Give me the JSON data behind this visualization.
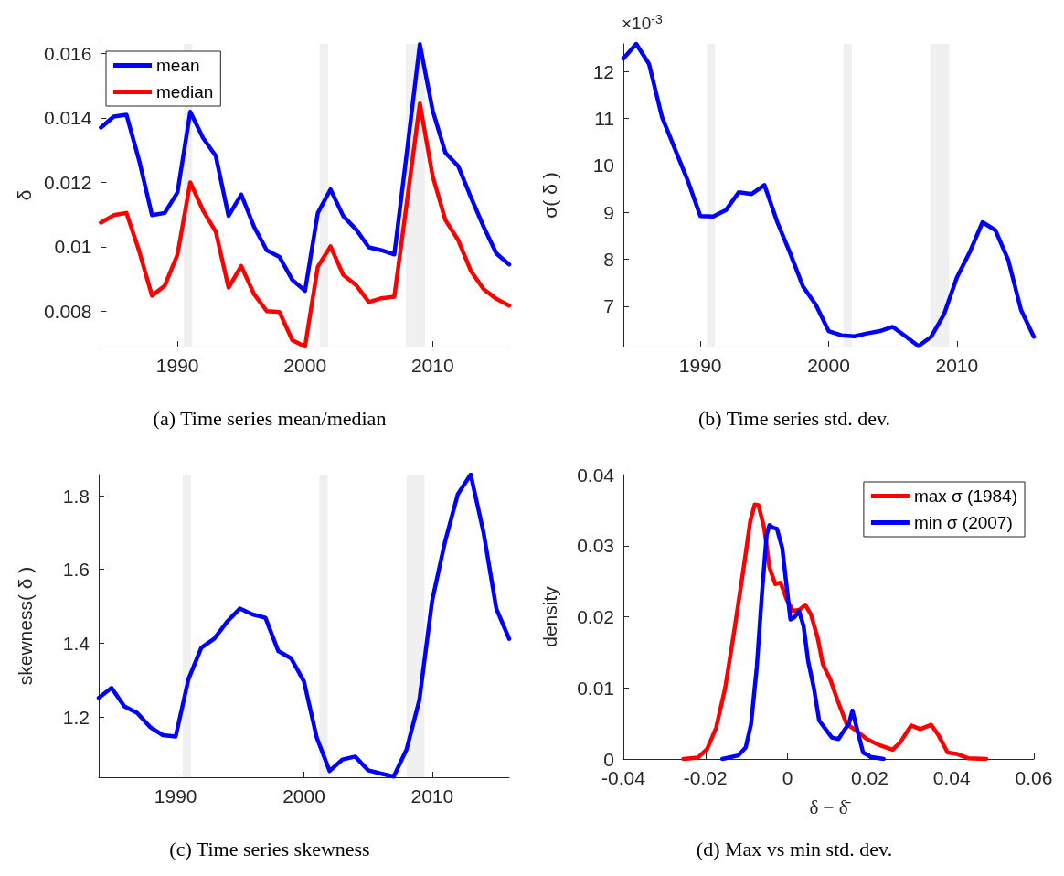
{
  "chart_data": [
    {
      "type": "line",
      "title": "(a) Time series mean/median",
      "ylabel": "δ",
      "marker": "none",
      "grid": false,
      "legend": "top left",
      "x": [
        1984,
        1985,
        1986,
        1987,
        1988,
        1989,
        1990,
        1991,
        1992,
        1993,
        1994,
        1995,
        1996,
        1997,
        1998,
        1999,
        2000,
        2001,
        2002,
        2003,
        2004,
        2005,
        2006,
        2007,
        2008,
        2009,
        2010,
        2011,
        2012,
        2013,
        2014,
        2015,
        2016
      ],
      "series": [
        {
          "name": "mean",
          "color": "#0000ff",
          "values": [
            0.0137,
            0.01404,
            0.0141,
            0.01267,
            0.01098,
            0.01105,
            0.01169,
            0.01419,
            0.01338,
            0.01282,
            0.01096,
            0.01162,
            0.01062,
            0.00989,
            0.00968,
            0.00897,
            0.00863,
            0.01105,
            0.01178,
            0.01095,
            0.01054,
            0.00998,
            0.00989,
            0.00976,
            0.013,
            0.01629,
            0.01424,
            0.01292,
            0.01251,
            0.01154,
            0.01062,
            0.00979,
            0.00945
          ]
        },
        {
          "name": "median",
          "color": "#ff0000",
          "values": [
            0.01075,
            0.01098,
            0.01105,
            0.00986,
            0.00848,
            0.00879,
            0.00976,
            0.012,
            0.01113,
            0.01047,
            0.00873,
            0.0094,
            0.00853,
            0.008,
            0.00797,
            0.0071,
            0.0069,
            0.00938,
            0.01001,
            0.00912,
            0.00881,
            0.00828,
            0.0084,
            0.00845,
            0.01144,
            0.01445,
            0.0122,
            0.01083,
            0.01021,
            0.00925,
            0.00868,
            0.00838,
            0.00817
          ]
        }
      ],
      "xlim": [
        1984,
        2016
      ],
      "xticks": [
        1990,
        2000,
        2010
      ],
      "ylim": [
        0.0069,
        0.0163
      ],
      "yticks": [
        0.008,
        0.01,
        0.012,
        0.014,
        0.016
      ],
      "bands": [
        {
          "axis": "x",
          "from": 1990.5,
          "to": 1991.15,
          "color": "#f0f0f0"
        },
        {
          "axis": "x",
          "from": 2001.15,
          "to": 2001.82,
          "color": "#f0f0f0"
        },
        {
          "axis": "x",
          "from": 2007.9,
          "to": 2009.4,
          "color": "#f0f0f0"
        }
      ]
    },
    {
      "type": "line",
      "title": "(b) Time series std. dev.",
      "ylabel": "σ( δ )",
      "marker": "none",
      "grid": false,
      "annotations": [
        "×10$^{-3}$"
      ],
      "x": [
        1984,
        1985,
        1986,
        1987,
        1988,
        1989,
        1990,
        1991,
        1992,
        1993,
        1994,
        1995,
        1996,
        1997,
        1998,
        1999,
        2000,
        2001,
        2002,
        2003,
        2004,
        2005,
        2006,
        2007,
        2008,
        2009,
        2010,
        2011,
        2012,
        2013,
        2014,
        2015,
        2016
      ],
      "series": [
        {
          "color": "#0000ff",
          "values": [
            12.28,
            12.59,
            12.16,
            11.04,
            10.36,
            9.69,
            8.92,
            8.91,
            9.05,
            9.43,
            9.39,
            9.58,
            8.79,
            8.13,
            7.42,
            7.03,
            6.47,
            6.38,
            6.36,
            6.42,
            6.47,
            6.56,
            6.36,
            6.15,
            6.35,
            6.83,
            7.61,
            8.15,
            8.79,
            8.62,
            7.99,
            6.92,
            6.35
          ]
        }
      ],
      "xlim": [
        1984,
        2016
      ],
      "xticks": [
        1990,
        2000,
        2010
      ],
      "ylim": [
        6.14,
        12.59
      ],
      "yticks": [
        7,
        8,
        9,
        10,
        11,
        12
      ],
      "bands": [
        {
          "axis": "x",
          "from": 1990.5,
          "to": 1991.15,
          "color": "#f0f0f0"
        },
        {
          "axis": "x",
          "from": 2001.15,
          "to": 2001.8,
          "color": "#f0f0f0"
        },
        {
          "axis": "x",
          "from": 2007.94,
          "to": 2009.4,
          "color": "#f0f0f0"
        }
      ]
    },
    {
      "type": "line",
      "title": "(c) Time series skewness",
      "ylabel": "skewness( δ )",
      "marker": "none",
      "grid": false,
      "x": [
        1984,
        1985,
        1986,
        1987,
        1988,
        1989,
        1990,
        1991,
        1992,
        1993,
        1994,
        1995,
        1996,
        1997,
        1998,
        1999,
        2000,
        2001,
        2002,
        2003,
        2004,
        2005,
        2006,
        2007,
        2008,
        2009,
        2010,
        2011,
        2012,
        2013,
        2014,
        2015,
        2016
      ],
      "series": [
        {
          "color": "#0000ff",
          "values": [
            1.252,
            1.279,
            1.229,
            1.211,
            1.173,
            1.151,
            1.147,
            1.303,
            1.388,
            1.412,
            1.458,
            1.494,
            1.478,
            1.469,
            1.379,
            1.359,
            1.297,
            1.144,
            1.054,
            1.085,
            1.093,
            1.056,
            1.047,
            1.039,
            1.112,
            1.246,
            1.516,
            1.675,
            1.804,
            1.857,
            1.701,
            1.494,
            1.412
          ]
        }
      ],
      "xlim": [
        1984,
        2016
      ],
      "xticks": [
        1990,
        2000,
        2010
      ],
      "ylim": [
        1.037,
        1.857
      ],
      "yticks": [
        1.2,
        1.4,
        1.6,
        1.8
      ],
      "bands": [
        {
          "axis": "x",
          "from": 1990.55,
          "to": 1991.19,
          "color": "#f0f0f0"
        },
        {
          "axis": "x",
          "from": 2001.2,
          "to": 2001.85,
          "color": "#f0f0f0"
        },
        {
          "axis": "x",
          "from": 2008.0,
          "to": 2009.4,
          "color": "#f0f0f0"
        }
      ]
    },
    {
      "type": "line",
      "title": "(d) Max vs min std. dev.",
      "xlabel": "δ − δ̄",
      "ylabel": "density",
      "marker": "none",
      "grid": false,
      "legend": "top right",
      "series": [
        {
          "name": "max σ (1984)",
          "color": "#ff0000",
          "x": [
            -0.0254,
            -0.0218,
            -0.0196,
            -0.0174,
            -0.0152,
            -0.013,
            -0.0107,
            -0.0091,
            -0.008,
            -0.0071,
            -0.0057,
            -0.0044,
            -0.003,
            -0.0017,
            -0.0002,
            0.0014,
            0.003,
            0.0043,
            0.0057,
            0.0073,
            0.0086,
            0.0104,
            0.0122,
            0.0144,
            0.0167,
            0.0193,
            0.0225,
            0.0256,
            0.0274,
            0.0301,
            0.0323,
            0.035,
            0.0368,
            0.039,
            0.0413,
            0.044,
            0.0484
          ],
          "values": [
            0,
            0.0002,
            0.0014,
            0.0044,
            0.01,
            0.018,
            0.0269,
            0.0334,
            0.0358,
            0.0357,
            0.0325,
            0.0269,
            0.0246,
            0.0248,
            0.0224,
            0.0208,
            0.021,
            0.0217,
            0.0203,
            0.0171,
            0.0133,
            0.0112,
            0.0082,
            0.0049,
            0.004,
            0.0028,
            0.0019,
            0.0013,
            0.0023,
            0.0047,
            0.0042,
            0.0048,
            0.0033,
            0.0009,
            0.0007,
            0.0001,
            0
          ]
        },
        {
          "name": "min σ (2007)",
          "color": "#0000ff",
          "x": [
            -0.0159,
            -0.012,
            -0.0102,
            -0.0089,
            -0.0075,
            -0.0062,
            -0.0051,
            -0.0044,
            -0.0035,
            -0.0026,
            -0.0013,
            -0.0002,
            0.0007,
            0.0016,
            0.0028,
            0.0039,
            0.005,
            0.0064,
            0.0077,
            0.009,
            0.0108,
            0.0124,
            0.014,
            0.0149,
            0.0158,
            0.0167,
            0.0184,
            0.0202,
            0.0234
          ],
          "values": [
            0,
            0.0005,
            0.0016,
            0.0049,
            0.0129,
            0.0236,
            0.0315,
            0.0329,
            0.0325,
            0.0324,
            0.0297,
            0.0241,
            0.0196,
            0.0199,
            0.0208,
            0.0187,
            0.0138,
            0.01,
            0.0054,
            0.0044,
            0.003,
            0.0028,
            0.0042,
            0.0049,
            0.0068,
            0.0047,
            0.0009,
            0.0003,
            0
          ]
        }
      ],
      "xlim": [
        -0.04,
        0.06
      ],
      "xticks": [
        -0.04,
        -0.02,
        0,
        0.02,
        0.04,
        0.06
      ],
      "ylim": [
        0,
        0.04
      ],
      "yticks": [
        0,
        0.01,
        0.02,
        0.03,
        0.04
      ]
    }
  ]
}
